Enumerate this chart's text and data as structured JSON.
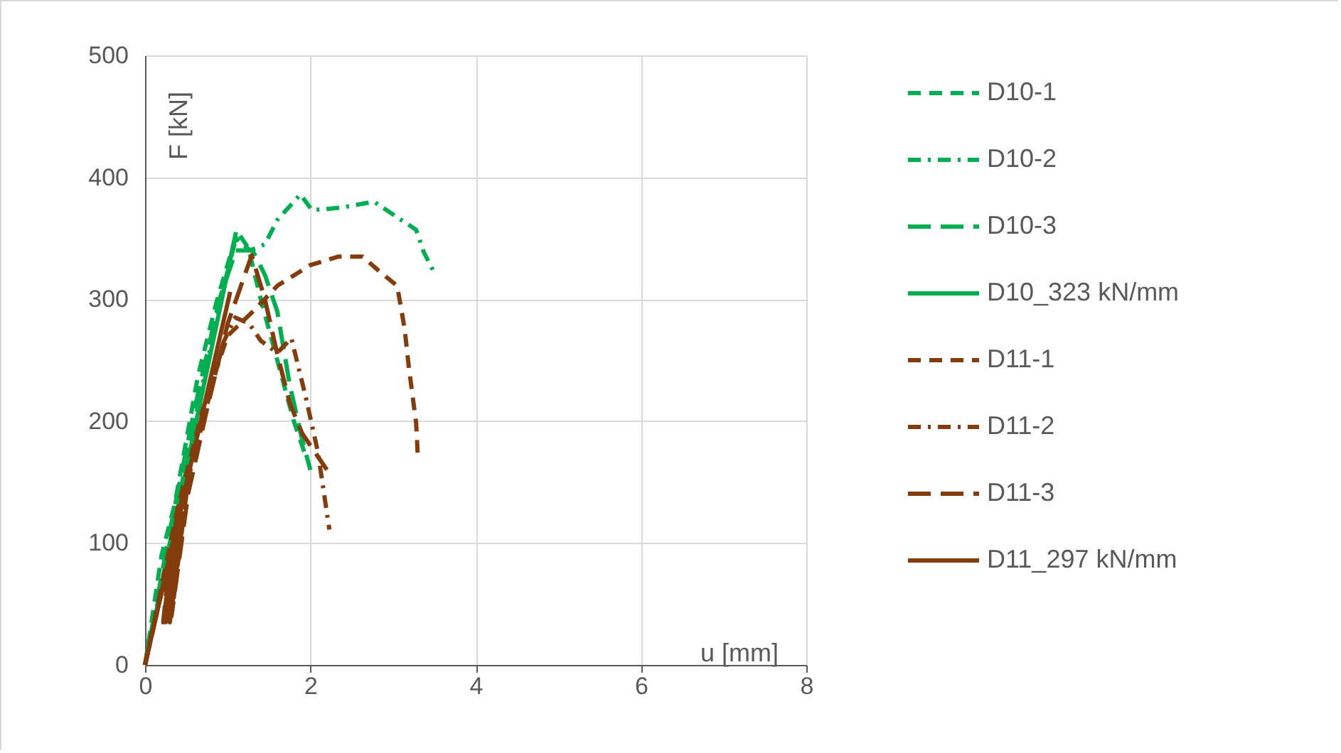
{
  "chart_data": {
    "type": "line",
    "xlabel": "u [mm]",
    "ylabel": "F [kN]",
    "xlim": [
      0,
      8
    ],
    "xticks": [
      0,
      2,
      4,
      6,
      8
    ],
    "ylim": [
      0,
      500
    ],
    "yticks": [
      0,
      100,
      200,
      300,
      400,
      500
    ],
    "grid": true,
    "legend": "right",
    "series": [
      {
        "name": "D10-1",
        "color": "#00b050",
        "line_style": "dashed",
        "x": [
          0,
          0.2,
          0.36,
          0.64,
          0.87,
          1.05,
          1.12,
          1.25,
          1.4,
          1.6,
          1.8,
          1.95
        ],
        "values": [
          0,
          90,
          132,
          237,
          299,
          340,
          355,
          342,
          300,
          250,
          200,
          170
        ]
      },
      {
        "name": "D10-2",
        "color": "#00b050",
        "line_style": "dashdot",
        "x": [
          0,
          0.3,
          0.6,
          0.95,
          1.1,
          1.27,
          1.45,
          1.6,
          1.88,
          2.02,
          2.36,
          2.77,
          3.1,
          3.28,
          3.37,
          3.51
        ],
        "values": [
          0,
          100,
          200,
          310,
          350,
          340,
          345,
          365,
          386,
          373,
          375,
          380,
          365,
          357,
          339,
          320
        ]
      },
      {
        "name": "D10-3",
        "color": "#00b050",
        "line_style": "longdash",
        "x": [
          0,
          0.3,
          0.6,
          0.9,
          1.1,
          1.3,
          1.45,
          1.6,
          1.75,
          1.9,
          2.0
        ],
        "values": [
          0,
          110,
          210,
          300,
          340,
          340,
          320,
          290,
          230,
          185,
          160
        ]
      },
      {
        "name": "D10_323 kN/mm",
        "color": "#00b050",
        "line_style": "solid",
        "x": [
          0,
          1.1
        ],
        "values": [
          0,
          355
        ]
      },
      {
        "name": "D11-1",
        "color": "#843c0c",
        "line_style": "dashed",
        "x": [
          0,
          0.4,
          0.7,
          1.0,
          1.32,
          1.6,
          2.0,
          2.34,
          2.63,
          2.85,
          3.05,
          3.14,
          3.19,
          3.28,
          3.3
        ],
        "values": [
          0,
          130,
          210,
          270,
          291,
          311,
          328,
          335,
          335,
          322,
          311,
          276,
          245,
          198,
          171
        ]
      },
      {
        "name": "D11-2",
        "color": "#843c0c",
        "line_style": "dashdot",
        "x": [
          0,
          0.4,
          0.7,
          0.95,
          1.09,
          1.26,
          1.4,
          1.6,
          1.77,
          1.86,
          1.94,
          2.09,
          2.23
        ],
        "values": [
          0,
          120,
          200,
          265,
          285,
          280,
          266,
          256,
          268,
          243,
          221,
          175,
          111
        ]
      },
      {
        "name": "D11-3",
        "color": "#843c0c",
        "line_style": "longdash",
        "x": [
          0,
          0.3,
          0.22,
          0.4,
          0.25,
          0.45,
          0.3,
          0.5,
          0.32,
          0.52,
          0.75,
          1.0,
          1.29,
          1.45,
          1.6,
          1.75,
          1.9,
          2.05,
          2.2
        ],
        "values": [
          0,
          90,
          35,
          130,
          35,
          140,
          35,
          140,
          40,
          140,
          210,
          280,
          336,
          300,
          255,
          215,
          190,
          175,
          160
        ]
      },
      {
        "name": "D11_297 kN/mm",
        "color": "#843c0c",
        "line_style": "solid",
        "x": [
          0,
          1.03
        ],
        "values": [
          0,
          306
        ]
      }
    ]
  }
}
